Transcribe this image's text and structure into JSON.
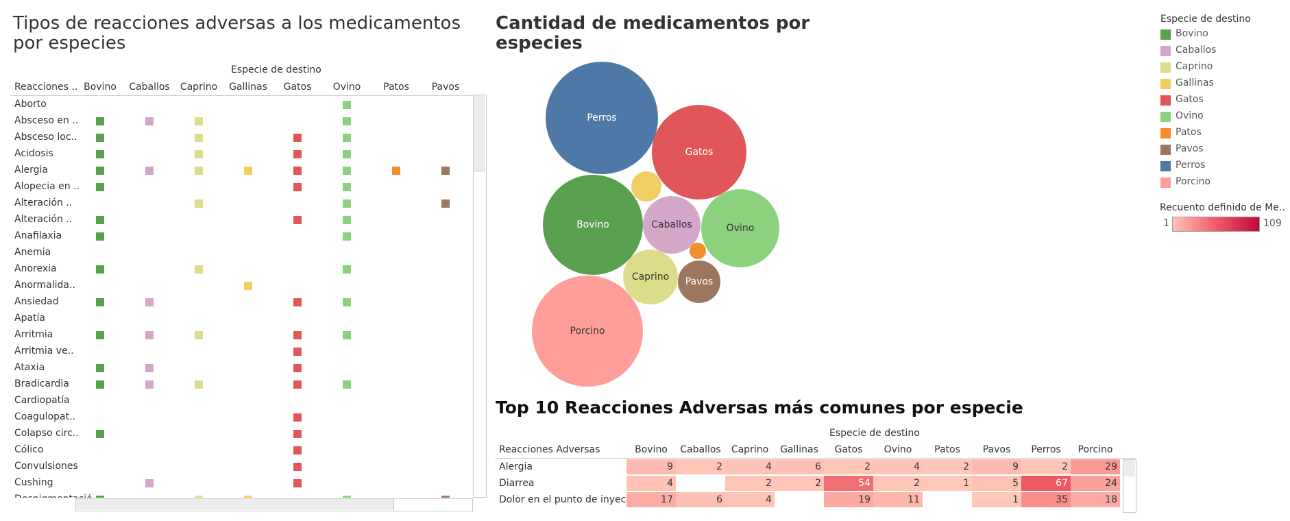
{
  "left_panel": {
    "title": "Tipos de reacciones adversas a los medicamentos por especies",
    "group_header": "Especie de destino",
    "row_header": "Reacciones ..",
    "columns": [
      "Bovino",
      "Caballos",
      "Caprino",
      "Gallinas",
      "Gatos",
      "Ovino",
      "Patos",
      "Pavos"
    ],
    "rows": [
      {
        "label": "Aborto",
        "marks": [
          "Ovino"
        ]
      },
      {
        "label": "Absceso en ..",
        "marks": [
          "Bovino",
          "Caballos",
          "Caprino",
          "Ovino"
        ]
      },
      {
        "label": "Absceso loc..",
        "marks": [
          "Bovino",
          "Caprino",
          "Gatos",
          "Ovino"
        ]
      },
      {
        "label": "Acidosis",
        "marks": [
          "Bovino",
          "Caprino",
          "Gatos",
          "Ovino"
        ]
      },
      {
        "label": "Alergia",
        "marks": [
          "Bovino",
          "Caballos",
          "Caprino",
          "Gallinas",
          "Gatos",
          "Ovino",
          "Patos",
          "Pavos"
        ]
      },
      {
        "label": "Alopecia en ..",
        "marks": [
          "Bovino",
          "Gatos",
          "Ovino"
        ]
      },
      {
        "label": "Alteración ..",
        "marks": [
          "Caprino",
          "Ovino",
          "Pavos"
        ]
      },
      {
        "label": "Alteración ..",
        "marks": [
          "Bovino",
          "Gatos",
          "Ovino"
        ]
      },
      {
        "label": "Anafilaxia",
        "marks": [
          "Bovino",
          "Ovino"
        ]
      },
      {
        "label": "Anemia",
        "marks": []
      },
      {
        "label": "Anorexia",
        "marks": [
          "Bovino",
          "Caprino",
          "Ovino"
        ]
      },
      {
        "label": "Anormalida..",
        "marks": [
          "Gallinas"
        ]
      },
      {
        "label": "Ansiedad",
        "marks": [
          "Bovino",
          "Caballos",
          "Gatos",
          "Ovino"
        ]
      },
      {
        "label": "Apatía",
        "marks": []
      },
      {
        "label": "Arritmia",
        "marks": [
          "Bovino",
          "Caballos",
          "Caprino",
          "Gatos",
          "Ovino"
        ]
      },
      {
        "label": "Arritmia ve..",
        "marks": [
          "Gatos"
        ]
      },
      {
        "label": "Ataxia",
        "marks": [
          "Bovino",
          "Caballos",
          "Gatos"
        ]
      },
      {
        "label": "Bradicardia",
        "marks": [
          "Bovino",
          "Caballos",
          "Caprino",
          "Gatos",
          "Ovino"
        ]
      },
      {
        "label": "Cardiopatía",
        "marks": []
      },
      {
        "label": "Coagulopat..",
        "marks": [
          "Gatos"
        ]
      },
      {
        "label": "Colapso circ..",
        "marks": [
          "Bovino",
          "Gatos"
        ]
      },
      {
        "label": "Cólico",
        "marks": [
          "Gatos"
        ]
      },
      {
        "label": "Convulsiones",
        "marks": [
          "Gatos"
        ]
      },
      {
        "label": "Cushing",
        "marks": [
          "Caballos",
          "Gatos"
        ]
      },
      {
        "label": "Despigmentació..",
        "marks": [
          "Bovino",
          "Caprino",
          "Gallinas",
          "Ovino",
          "Pavos"
        ]
      }
    ]
  },
  "colors": {
    "Bovino": "#59a14f",
    "Caballos": "#d4a6c8",
    "Caprino": "#dcdc8a",
    "Gallinas": "#f1ce63",
    "Gatos": "#e15759",
    "Ovino": "#8cd17d",
    "Patos": "#f28e2b",
    "Pavos": "#9d7660",
    "Perros": "#4e79a7",
    "Porcino": "#ff9d9a"
  },
  "bubble_panel": {
    "title": "Cantidad de medicamentos por especies",
    "bubbles": [
      {
        "name": "Perros",
        "label": "Perros"
      },
      {
        "name": "Gatos",
        "label": "Gatos"
      },
      {
        "name": "Gallinas",
        "label": ""
      },
      {
        "name": "Bovino",
        "label": "Bovino"
      },
      {
        "name": "Caballos",
        "label": "Caballos"
      },
      {
        "name": "Ovino",
        "label": "Ovino"
      },
      {
        "name": "Patos",
        "label": ""
      },
      {
        "name": "Caprino",
        "label": "Caprino"
      },
      {
        "name": "Pavos",
        "label": "Pavos"
      },
      {
        "name": "Porcino",
        "label": "Porcino"
      }
    ]
  },
  "legend": {
    "title": "Especie de destino",
    "items": [
      "Bovino",
      "Caballos",
      "Caprino",
      "Gallinas",
      "Gatos",
      "Ovino",
      "Patos",
      "Pavos",
      "Perros",
      "Porcino"
    ],
    "gradient_title": "Recuento definido de Me..",
    "gradient_min": "1",
    "gradient_max": "109"
  },
  "top10": {
    "title": "Top 10 Reacciones Adversas más comunes por especie",
    "group_header": "Especie de destino",
    "row_header": "Reacciones Adversas",
    "columns": [
      "Bovino",
      "Caballos",
      "Caprino",
      "Gallinas",
      "Gatos",
      "Ovino",
      "Patos",
      "Pavos",
      "Perros",
      "Porcino"
    ],
    "rows": [
      {
        "label": "Alergia",
        "values": [
          9,
          2,
          4,
          6,
          2,
          4,
          2,
          9,
          2,
          29
        ]
      },
      {
        "label": "Diarrea",
        "values": [
          4,
          null,
          2,
          2,
          54,
          2,
          1,
          5,
          67,
          24
        ]
      },
      {
        "label": "Dolor en el punto de inyec..",
        "values": [
          17,
          6,
          4,
          null,
          19,
          11,
          null,
          1,
          35,
          18
        ]
      }
    ]
  }
}
